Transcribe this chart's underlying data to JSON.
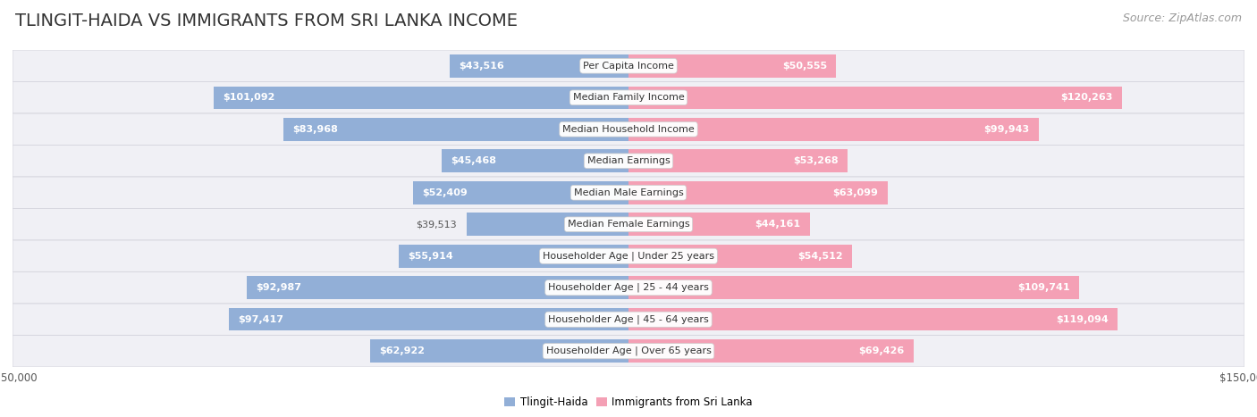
{
  "title": "TLINGIT-HAIDA VS IMMIGRANTS FROM SRI LANKA INCOME",
  "source": "Source: ZipAtlas.com",
  "categories": [
    "Per Capita Income",
    "Median Family Income",
    "Median Household Income",
    "Median Earnings",
    "Median Male Earnings",
    "Median Female Earnings",
    "Householder Age | Under 25 years",
    "Householder Age | 25 - 44 years",
    "Householder Age | 45 - 64 years",
    "Householder Age | Over 65 years"
  ],
  "tlingit_values": [
    43516,
    101092,
    83968,
    45468,
    52409,
    39513,
    55914,
    92987,
    97417,
    62922
  ],
  "srilanka_values": [
    50555,
    120263,
    99943,
    53268,
    63099,
    44161,
    54512,
    109741,
    119094,
    69426
  ],
  "tlingit_color": "#92afd7",
  "srilanka_color": "#f4a0b5",
  "tlingit_label": "Tlingit-Haida",
  "srilanka_label": "Immigrants from Sri Lanka",
  "axis_max": 150000,
  "background_color": "#ffffff",
  "row_even_color": "#f5f5f7",
  "row_odd_color": "#eaeaee",
  "title_fontsize": 14,
  "source_fontsize": 9,
  "cat_fontsize": 8,
  "value_fontsize": 8,
  "bar_height": 0.72,
  "inner_value_threshold": 0.28,
  "tlingit_text_color_inner": "#ffffff",
  "tlingit_text_color_outer": "#555555",
  "srilanka_text_color_inner": "#ffffff",
  "srilanka_text_color_outer": "#555555"
}
